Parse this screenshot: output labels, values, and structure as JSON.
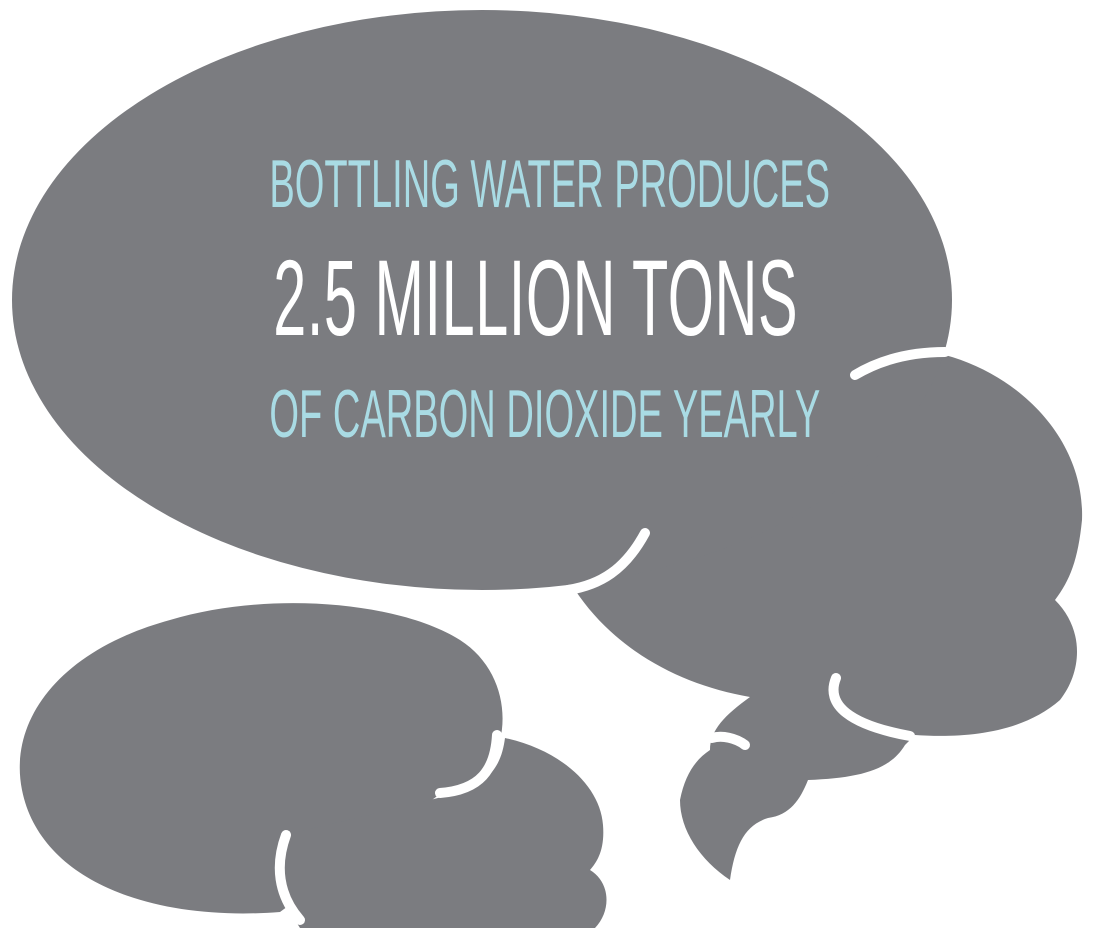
{
  "headline": {
    "line1": "BOTTLING WATER PRODUCES",
    "line2": "2.5 MILLION TONS",
    "line3": "OF CARBON DIOXIDE YEARLY"
  },
  "graphic": {
    "shape": "smoke-cloud-icon"
  },
  "colors": {
    "cloud": "#7b7c80",
    "accent": "#a9dbe4",
    "emphasis": "#ffffff",
    "background": "#ffffff"
  }
}
